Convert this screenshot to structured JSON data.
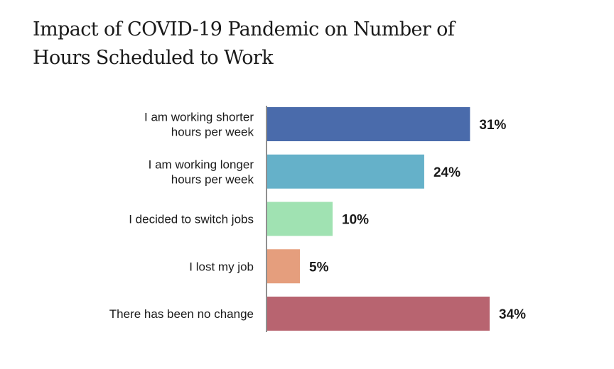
{
  "chart_data": {
    "type": "bar",
    "orientation": "horizontal",
    "title": [
      "Impact of COVID-19 Pandemic on Number of",
      "Hours Scheduled to Work"
    ],
    "categories": [
      [
        "I am working shorter",
        "hours per week"
      ],
      [
        "I am working longer",
        "hours per week"
      ],
      [
        "I decided to switch jobs"
      ],
      [
        "I lost my job"
      ],
      [
        "There has been no change"
      ]
    ],
    "values": [
      31,
      24,
      10,
      5,
      34
    ],
    "value_labels": [
      "31%",
      "24%",
      "10%",
      "5%",
      "34%"
    ],
    "colors": [
      "#4a6bab",
      "#65b1c9",
      "#a0e2b2",
      "#e59e7d",
      "#b86470"
    ],
    "xlim": [
      0,
      34
    ],
    "grid": false,
    "legend": "none"
  }
}
